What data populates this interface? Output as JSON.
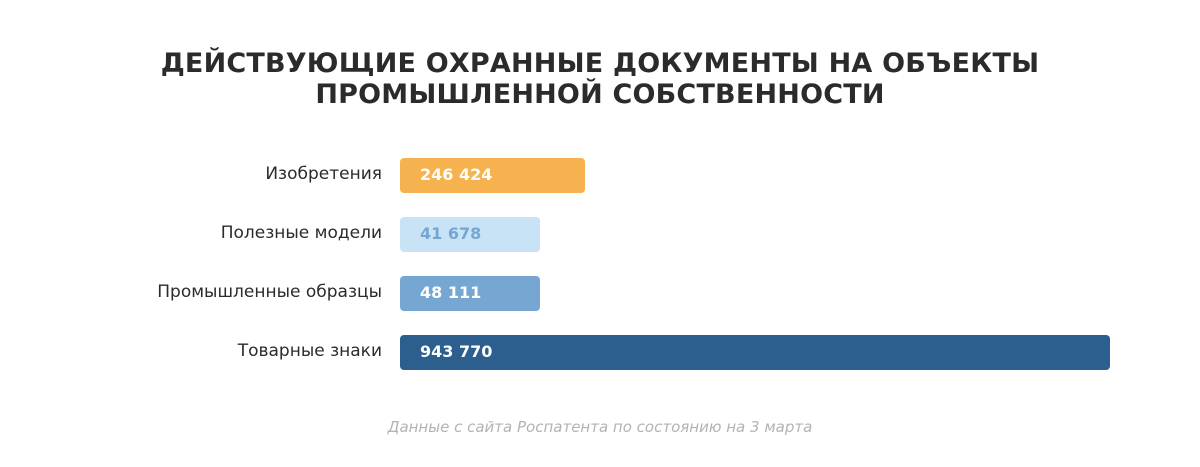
{
  "header": {
    "title_line1": "ДЕЙСТВУЮЩИЕ ОХРАННЫЕ ДОКУМЕНТЫ НА ОБЪЕКТЫ",
    "title_line2": "ПРОМЫШЛЕННОЙ СОБСТВЕННОСТИ"
  },
  "footnote": "Данные с сайта Роспатента по состоянию на 3 марта",
  "chart_data": {
    "type": "bar",
    "orientation": "horizontal",
    "title": "ДЕЙСТВУЮЩИЕ ОХРАННЫЕ ДОКУМЕНТЫ НА ОБЪЕКТЫ ПРОМЫШЛЕННОЙ СОБСТВЕННОСТИ",
    "categories": [
      "Изобретения",
      "Полезные модели",
      "Промышленные образцы",
      "Товарные знаки"
    ],
    "values": [
      246424,
      41678,
      48111,
      943770
    ],
    "value_labels": [
      "246 424",
      "41 678",
      "48 111",
      "943 770"
    ],
    "colors": [
      "#F6B24E",
      "#C9E3F6",
      "#76A7D2",
      "#2C5F8E"
    ],
    "value_label_colors": [
      "#ffffff",
      "#76A7D2",
      "#ffffff",
      "#ffffff"
    ],
    "xlim": [
      0,
      943770
    ],
    "grid": false,
    "legend": "none"
  }
}
